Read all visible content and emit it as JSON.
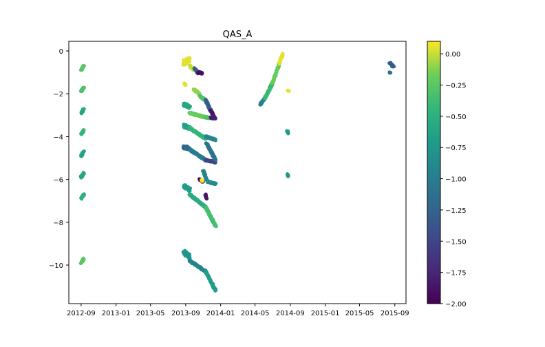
{
  "chart_data": {
    "type": "scatter",
    "title": "QAS_A",
    "xlabel": "",
    "ylabel": "",
    "x_ticks": [
      "2012-09",
      "2013-01",
      "2013-05",
      "2013-09",
      "2014-01",
      "2014-05",
      "2014-09",
      "2015-01",
      "2015-05",
      "2015-09"
    ],
    "xlim": [
      "2012-07-20",
      "2015-10-10"
    ],
    "y_ticks": [
      0,
      -2,
      -4,
      -6,
      -8,
      -10
    ],
    "ylim": [
      -11.8,
      0.45
    ],
    "colorbar": {
      "colormap": "viridis",
      "range": [
        -2.0,
        0.1
      ],
      "tick_values": [
        0.0,
        -0.25,
        -0.5,
        -0.75,
        -1.0,
        -1.25,
        -1.5,
        -1.75,
        -2.0
      ],
      "tick_labels": [
        "0.00",
        "−0.25",
        "−0.50",
        "−0.75",
        "−1.00",
        "−1.25",
        "−1.50",
        "−1.75",
        "−2.00"
      ]
    },
    "grid": false,
    "legend": "none",
    "clusters": [
      {
        "x0": "2012-09-01",
        "x1": "2012-09-10",
        "y0": -0.9,
        "y1": -0.7,
        "c": -0.25
      },
      {
        "x0": "2012-09-01",
        "x1": "2012-09-10",
        "y0": -1.9,
        "y1": -1.7,
        "c": -0.3
      },
      {
        "x0": "2012-09-01",
        "x1": "2012-09-10",
        "y0": -2.9,
        "y1": -2.7,
        "c": -0.6
      },
      {
        "x0": "2012-09-01",
        "x1": "2012-09-10",
        "y0": -3.9,
        "y1": -3.7,
        "c": -0.45
      },
      {
        "x0": "2012-09-01",
        "x1": "2012-09-10",
        "y0": -4.9,
        "y1": -4.7,
        "c": -0.65
      },
      {
        "x0": "2012-09-01",
        "x1": "2012-09-10",
        "y0": -5.9,
        "y1": -5.7,
        "c": -0.6
      },
      {
        "x0": "2012-09-01",
        "x1": "2012-09-10",
        "y0": -6.9,
        "y1": -6.7,
        "c": -0.5
      },
      {
        "x0": "2012-09-01",
        "x1": "2012-09-10",
        "y0": -9.9,
        "y1": -9.7,
        "c": -0.25
      },
      {
        "x0": "2013-08-25",
        "x1": "2013-09-15",
        "y0": -0.55,
        "y1": -0.4,
        "c": 0.05,
        "spread": 0.25
      },
      {
        "x0": "2013-09-15",
        "x1": "2013-10-01",
        "y0": -0.7,
        "y1": -0.9,
        "c": 0.0
      },
      {
        "x0": "2013-08-28",
        "x1": "2013-08-30",
        "y0": -1.5,
        "y1": -1.6,
        "c": 0.05
      },
      {
        "x0": "2013-10-01",
        "x1": "2013-10-15",
        "y0": -0.8,
        "y1": -1.05,
        "c": -1.3
      },
      {
        "x0": "2013-10-15",
        "x1": "2013-10-28",
        "y0": -1.0,
        "y1": -1.05,
        "c": -1.9
      },
      {
        "x0": "2013-09-29",
        "x1": "2013-10-20",
        "y0": -1.8,
        "y1": -2.0,
        "c": -0.1
      },
      {
        "x0": "2013-10-20",
        "x1": "2013-11-10",
        "y0": -2.1,
        "y1": -2.3,
        "c": -0.3
      },
      {
        "x0": "2013-11-10",
        "x1": "2013-11-28",
        "y0": -2.3,
        "y1": -2.8,
        "c": -1.3
      },
      {
        "x0": "2013-11-28",
        "x1": "2013-12-12",
        "y0": -2.8,
        "y1": -3.15,
        "c": -1.85
      },
      {
        "x0": "2013-08-25",
        "x1": "2013-09-15",
        "y0": -2.5,
        "y1": -2.6,
        "c": -0.6,
        "spread": 0.15
      },
      {
        "x0": "2013-09-15",
        "x1": "2013-11-10",
        "y0": -2.9,
        "y1": -3.1,
        "c": -0.2
      },
      {
        "x0": "2013-11-10",
        "x1": "2013-12-05",
        "y0": -3.1,
        "y1": -3.15,
        "c": -0.3
      },
      {
        "x0": "2013-11-28",
        "x1": "2013-12-15",
        "y0": -3.1,
        "y1": -3.15,
        "c": -1.8
      },
      {
        "x0": "2013-08-25",
        "x1": "2013-09-15",
        "y0": -3.5,
        "y1": -3.6,
        "c": -0.65,
        "spread": 0.15
      },
      {
        "x0": "2013-09-15",
        "x1": "2013-11-10",
        "y0": -3.6,
        "y1": -4.1,
        "c": -0.45
      },
      {
        "x0": "2013-11-10",
        "x1": "2013-12-15",
        "y0": -4.0,
        "y1": -4.15,
        "c": -0.9
      },
      {
        "x0": "2013-08-25",
        "x1": "2013-09-15",
        "y0": -4.5,
        "y1": -4.55,
        "c": -1.2,
        "spread": 0.15
      },
      {
        "x0": "2013-09-15",
        "x1": "2013-11-10",
        "y0": -4.6,
        "y1": -5.1,
        "c": -1.0
      },
      {
        "x0": "2013-11-10",
        "x1": "2013-12-15",
        "y0": -5.1,
        "y1": -5.2,
        "c": -1.5
      },
      {
        "x0": "2013-11-12",
        "x1": "2013-12-14",
        "y0": -4.3,
        "y1": -5.1,
        "c": -1.1
      },
      {
        "x0": "2013-10-20",
        "x1": "2013-10-31",
        "y0": -6.0,
        "y1": -6.1,
        "c": -1.9
      },
      {
        "x0": "2013-10-27",
        "x1": "2013-10-28",
        "y0": -6.05,
        "y1": -6.05,
        "c": 0.1
      },
      {
        "x0": "2013-11-01",
        "x1": "2013-11-15",
        "y0": -5.6,
        "y1": -6.1,
        "c": -0.9
      },
      {
        "x0": "2013-11-15",
        "x1": "2013-12-14",
        "y0": -6.1,
        "y1": -6.2,
        "c": -0.85
      },
      {
        "x0": "2013-11-08",
        "x1": "2013-11-12",
        "y0": -6.7,
        "y1": -6.9,
        "c": -1.85
      },
      {
        "x0": "2013-08-25",
        "x1": "2013-09-15",
        "y0": -6.3,
        "y1": -6.5,
        "c": -0.7,
        "spread": 0.2
      },
      {
        "x0": "2013-09-15",
        "x1": "2013-11-10",
        "y0": -6.7,
        "y1": -7.3,
        "c": -0.55
      },
      {
        "x0": "2013-11-10",
        "x1": "2013-12-15",
        "y0": -7.3,
        "y1": -8.2,
        "c": -0.35
      },
      {
        "x0": "2013-08-25",
        "x1": "2013-09-15",
        "y0": -9.4,
        "y1": -9.6,
        "c": -0.75,
        "spread": 0.2
      },
      {
        "x0": "2013-09-15",
        "x1": "2013-11-10",
        "y0": -9.8,
        "y1": -10.3,
        "c": -0.95
      },
      {
        "x0": "2013-11-10",
        "x1": "2013-12-15",
        "y0": -10.3,
        "y1": -11.2,
        "c": -0.7
      },
      {
        "x0": "2014-05-20",
        "x1": "2014-06-05",
        "y0": -2.5,
        "y1": -2.2,
        "c": -0.95
      },
      {
        "x0": "2014-06-05",
        "x1": "2014-07-01",
        "y0": -2.2,
        "y1": -1.5,
        "c": -0.4
      },
      {
        "x0": "2014-07-01",
        "x1": "2014-07-25",
        "y0": -1.5,
        "y1": -0.6,
        "c": -0.2
      },
      {
        "x0": "2014-07-25",
        "x1": "2014-08-05",
        "y0": -0.6,
        "y1": -0.15,
        "c": 0.05
      },
      {
        "x0": "2014-08-25",
        "x1": "2014-08-26",
        "y0": -1.85,
        "y1": -1.85,
        "c": 0.05
      },
      {
        "x0": "2014-08-22",
        "x1": "2014-08-26",
        "y0": -3.75,
        "y1": -3.85,
        "c": -0.7
      },
      {
        "x0": "2014-08-22",
        "x1": "2014-08-26",
        "y0": -5.75,
        "y1": -5.85,
        "c": -0.75
      },
      {
        "x0": "2015-08-15",
        "x1": "2015-08-28",
        "y0": -0.55,
        "y1": -0.75,
        "c": -1.3
      },
      {
        "x0": "2015-08-15",
        "x1": "2015-08-16",
        "y0": -1.0,
        "y1": -1.0,
        "c": -1.1
      }
    ]
  }
}
